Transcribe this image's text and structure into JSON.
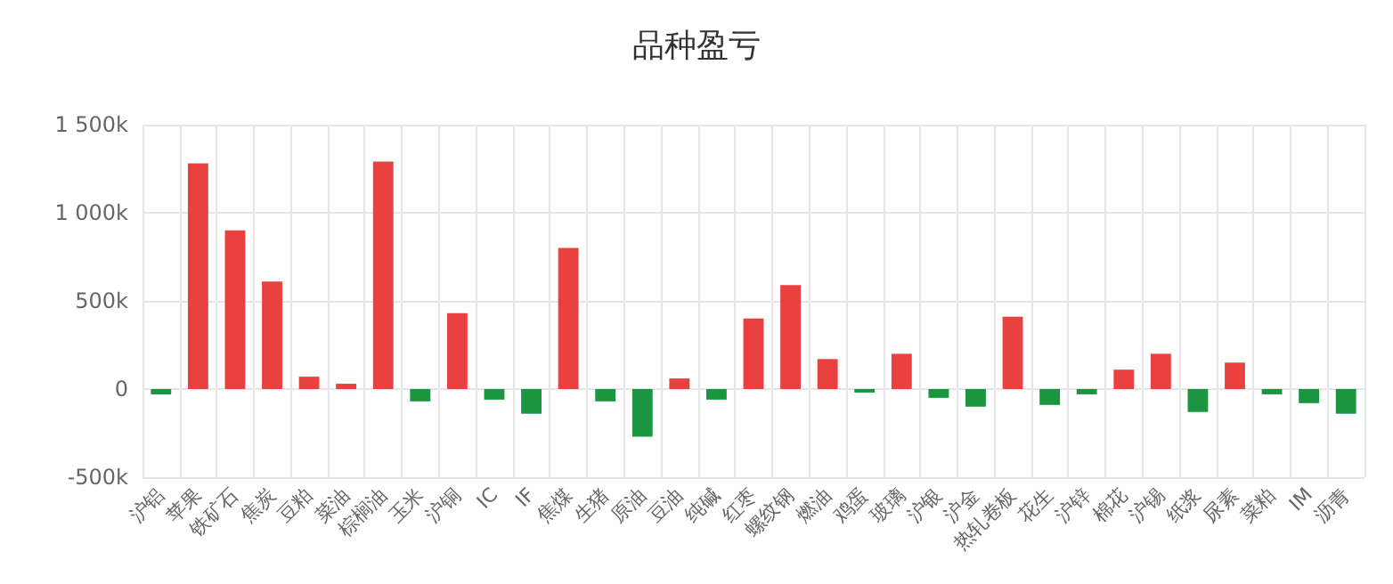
{
  "chart_data": {
    "type": "bar",
    "title": "品种盈亏",
    "categories": [
      "沪铝",
      "苹果",
      "铁矿石",
      "焦炭",
      "豆粕",
      "菜油",
      "棕榈油",
      "玉米",
      "沪铜",
      "IC",
      "IF",
      "焦煤",
      "生猪",
      "原油",
      "豆油",
      "纯碱",
      "红枣",
      "螺纹钢",
      "燃油",
      "鸡蛋",
      "玻璃",
      "沪银",
      "沪金",
      "热轧卷板",
      "花生",
      "沪锌",
      "棉花",
      "沪锡",
      "纸浆",
      "尿素",
      "菜粕",
      "IM",
      "沥青"
    ],
    "values": [
      -30000,
      1280000,
      900000,
      610000,
      70000,
      30000,
      1290000,
      -70000,
      430000,
      -60000,
      -140000,
      800000,
      -70000,
      -270000,
      60000,
      -60000,
      400000,
      590000,
      170000,
      -20000,
      200000,
      -50000,
      -100000,
      410000,
      -90000,
      -30000,
      110000,
      200000,
      -130000,
      150000,
      -30000,
      -80000,
      -140000
    ],
    "colors": [
      "#1a9641",
      "#e8413f",
      "#e8413f",
      "#e8413f",
      "#e8413f",
      "#e8413f",
      "#e8413f",
      "#1a9641",
      "#e8413f",
      "#1a9641",
      "#1a9641",
      "#e8413f",
      "#1a9641",
      "#1a9641",
      "#e8413f",
      "#1a9641",
      "#e8413f",
      "#e8413f",
      "#e8413f",
      "#1a9641",
      "#e8413f",
      "#1a9641",
      "#1a9641",
      "#e8413f",
      "#1a9641",
      "#1a9641",
      "#e8413f",
      "#e8413f",
      "#1a9641",
      "#e8413f",
      "#1a9641",
      "#1a9641",
      "#1a9641"
    ],
    "ylim": [
      -500000,
      1500000
    ],
    "yticks": [
      {
        "value": -500000,
        "label": "-500k"
      },
      {
        "value": 0,
        "label": "0"
      },
      {
        "value": 500000,
        "label": "500k"
      },
      {
        "value": 1000000,
        "label": "1 000k"
      },
      {
        "value": 1500000,
        "label": "1 500k"
      }
    ],
    "grid": true
  }
}
